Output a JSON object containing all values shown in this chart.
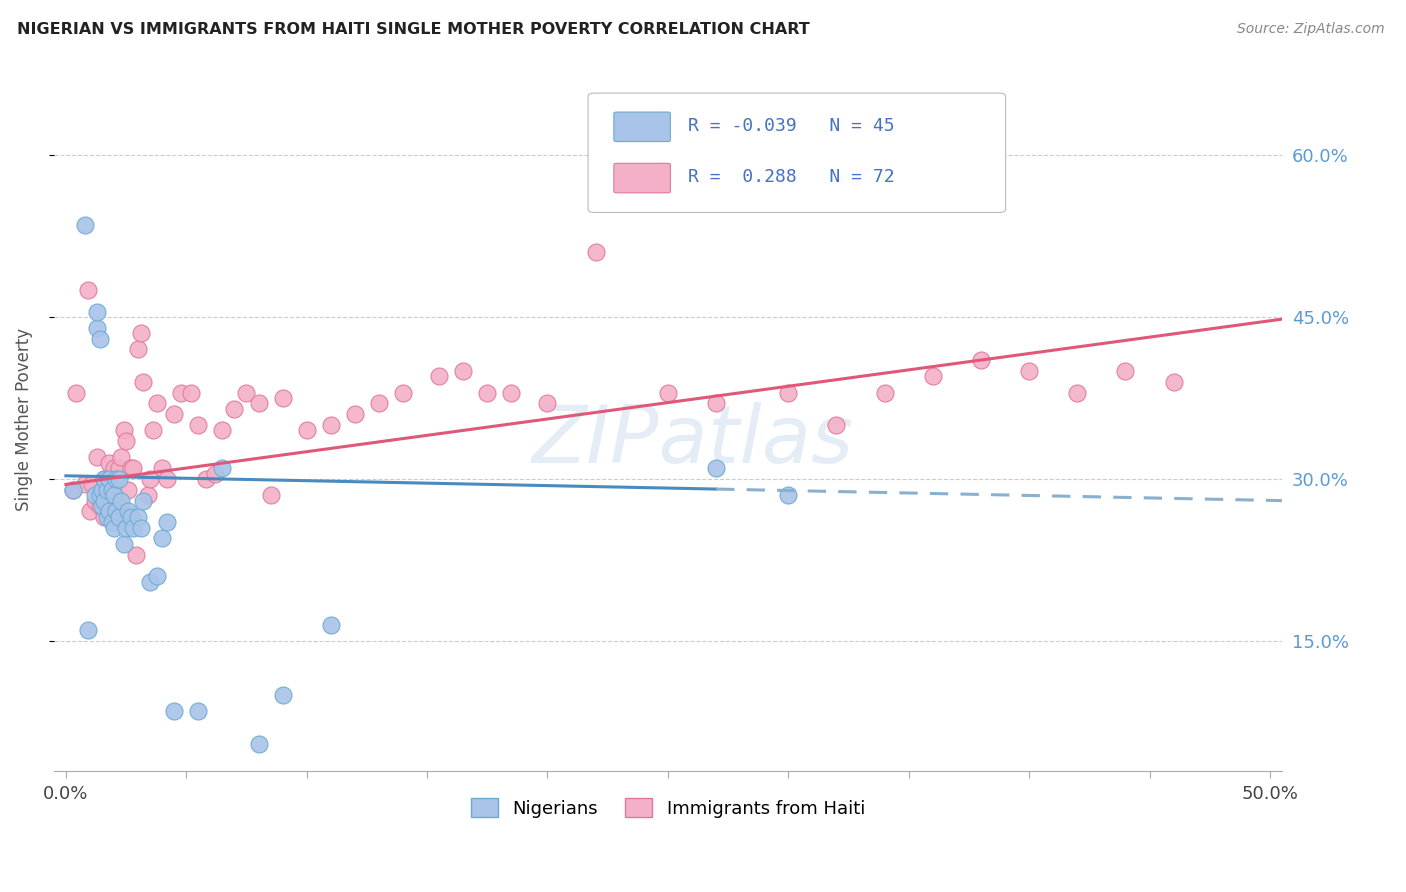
{
  "title": "NIGERIAN VS IMMIGRANTS FROM HAITI SINGLE MOTHER POVERTY CORRELATION CHART",
  "source": "Source: ZipAtlas.com",
  "ylabel": "Single Mother Poverty",
  "ytick_labels": [
    "15.0%",
    "30.0%",
    "45.0%",
    "60.0%"
  ],
  "ytick_values": [
    0.15,
    0.3,
    0.45,
    0.6
  ],
  "xlim": [
    -0.005,
    0.505
  ],
  "ylim": [
    0.03,
    0.68
  ],
  "legend_line1": "R = -0.039   N = 45",
  "legend_line2": "R =  0.288   N = 72",
  "color_nigerian_fill": "#a8c4e8",
  "color_nigerian_edge": "#6aaad4",
  "color_haiti_fill": "#f4b0c8",
  "color_haiti_edge": "#e07898",
  "color_nig_line_solid": "#4a8bbf",
  "color_nig_line_dashed": "#8ab0d0",
  "color_hai_line": "#e05878",
  "watermark": "ZIPatlas",
  "nigerian_x": [
    0.003,
    0.008,
    0.009,
    0.012,
    0.013,
    0.013,
    0.014,
    0.014,
    0.015,
    0.015,
    0.016,
    0.016,
    0.017,
    0.017,
    0.018,
    0.018,
    0.019,
    0.019,
    0.02,
    0.02,
    0.021,
    0.021,
    0.022,
    0.022,
    0.023,
    0.024,
    0.025,
    0.026,
    0.027,
    0.028,
    0.03,
    0.031,
    0.032,
    0.035,
    0.038,
    0.04,
    0.042,
    0.045,
    0.055,
    0.065,
    0.08,
    0.09,
    0.11,
    0.27,
    0.3
  ],
  "nigerian_y": [
    0.29,
    0.535,
    0.16,
    0.285,
    0.44,
    0.455,
    0.43,
    0.285,
    0.275,
    0.29,
    0.28,
    0.3,
    0.265,
    0.29,
    0.27,
    0.3,
    0.26,
    0.29,
    0.255,
    0.285,
    0.27,
    0.3,
    0.265,
    0.3,
    0.28,
    0.24,
    0.255,
    0.27,
    0.265,
    0.255,
    0.265,
    0.255,
    0.28,
    0.205,
    0.21,
    0.245,
    0.26,
    0.085,
    0.085,
    0.31,
    0.055,
    0.1,
    0.165,
    0.31,
    0.285
  ],
  "haiti_x": [
    0.003,
    0.004,
    0.008,
    0.009,
    0.01,
    0.011,
    0.012,
    0.013,
    0.014,
    0.015,
    0.016,
    0.016,
    0.017,
    0.017,
    0.018,
    0.018,
    0.019,
    0.02,
    0.02,
    0.021,
    0.022,
    0.022,
    0.023,
    0.024,
    0.025,
    0.026,
    0.027,
    0.028,
    0.029,
    0.03,
    0.031,
    0.032,
    0.034,
    0.035,
    0.036,
    0.038,
    0.04,
    0.042,
    0.045,
    0.048,
    0.052,
    0.055,
    0.058,
    0.062,
    0.065,
    0.07,
    0.075,
    0.08,
    0.085,
    0.09,
    0.1,
    0.11,
    0.12,
    0.13,
    0.14,
    0.155,
    0.165,
    0.175,
    0.185,
    0.2,
    0.22,
    0.25,
    0.27,
    0.3,
    0.32,
    0.34,
    0.36,
    0.38,
    0.4,
    0.42,
    0.44,
    0.46
  ],
  "haiti_y": [
    0.29,
    0.38,
    0.295,
    0.475,
    0.27,
    0.295,
    0.28,
    0.32,
    0.275,
    0.29,
    0.265,
    0.3,
    0.285,
    0.3,
    0.265,
    0.315,
    0.275,
    0.29,
    0.31,
    0.265,
    0.275,
    0.31,
    0.32,
    0.345,
    0.335,
    0.29,
    0.31,
    0.31,
    0.23,
    0.42,
    0.435,
    0.39,
    0.285,
    0.3,
    0.345,
    0.37,
    0.31,
    0.3,
    0.36,
    0.38,
    0.38,
    0.35,
    0.3,
    0.305,
    0.345,
    0.365,
    0.38,
    0.37,
    0.285,
    0.375,
    0.345,
    0.35,
    0.36,
    0.37,
    0.38,
    0.395,
    0.4,
    0.38,
    0.38,
    0.37,
    0.51,
    0.38,
    0.37,
    0.38,
    0.35,
    0.38,
    0.395,
    0.41,
    0.4,
    0.38,
    0.4,
    0.39
  ],
  "nig_line_solid_end": 0.27,
  "nig_line_start_y": 0.303,
  "nig_line_end_y": 0.28,
  "hai_line_start_y": 0.295,
  "hai_line_end_y": 0.448
}
